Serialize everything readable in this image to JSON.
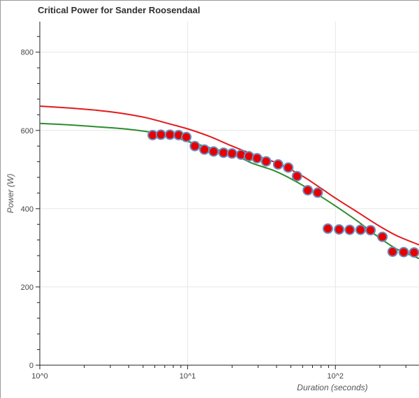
{
  "frame": {
    "background": "#ffffff",
    "border_color": "#9a9a9a"
  },
  "chart_data": {
    "type": "scatter",
    "title": "Critical Power for Sander Roosendaal",
    "xlabel": "Duration (seconds)",
    "ylabel": "Power (W)",
    "x_scale": "log",
    "x_range": [
      1,
      372
    ],
    "y_range": [
      0,
      878
    ],
    "grid": "on",
    "legend": "none",
    "colors": {
      "title": "#303030",
      "grid": "#e6e6e6",
      "axis": "#222222",
      "tick_label": "#444444",
      "axis_title": "#555555",
      "marker_fill": "#e60000",
      "marker_stroke": "#6b8ebf",
      "curve_red": "#e31a1c",
      "curve_green": "#2e8b2e"
    },
    "x_ticks": {
      "major": [
        {
          "value": 1,
          "label": "10^0"
        },
        {
          "value": 10,
          "label": "10^1"
        },
        {
          "value": 100,
          "label": "10^2"
        }
      ],
      "minor": [
        2,
        3,
        4,
        5,
        6,
        7,
        8,
        9,
        20,
        30,
        40,
        50,
        60,
        70,
        80,
        90,
        200,
        300
      ]
    },
    "y_ticks": {
      "major": [
        {
          "value": 0,
          "label": "0"
        },
        {
          "value": 200,
          "label": "200"
        },
        {
          "value": 400,
          "label": "400"
        },
        {
          "value": 600,
          "label": "600"
        },
        {
          "value": 800,
          "label": "800"
        }
      ],
      "minor": [
        40,
        80,
        120,
        160,
        240,
        280,
        320,
        360,
        440,
        480,
        520,
        560,
        640,
        680,
        720,
        760,
        840
      ]
    },
    "series": [
      {
        "name": "cp-model-curve-red",
        "type": "line",
        "color": "#e31a1c",
        "width": 2,
        "points": [
          [
            1,
            662
          ],
          [
            1.6,
            657
          ],
          [
            2.5,
            651
          ],
          [
            3.7,
            643
          ],
          [
            5.3,
            632
          ],
          [
            7.5,
            617
          ],
          [
            10,
            604
          ],
          [
            14,
            585
          ],
          [
            20,
            560
          ],
          [
            29,
            536
          ],
          [
            42,
            514
          ],
          [
            60,
            483
          ],
          [
            80,
            452
          ],
          [
            100,
            427
          ],
          [
            140,
            392
          ],
          [
            190,
            360
          ],
          [
            260,
            331
          ],
          [
            372,
            307
          ]
        ]
      },
      {
        "name": "cp-model-curve-green",
        "type": "line",
        "color": "#2e8b2e",
        "width": 2,
        "points": [
          [
            1,
            618
          ],
          [
            1.6,
            614
          ],
          [
            2.5,
            609
          ],
          [
            3.7,
            604
          ],
          [
            5.3,
            597
          ],
          [
            7.5,
            586
          ],
          [
            10,
            572
          ],
          [
            14,
            556
          ],
          [
            20,
            540
          ],
          [
            27,
            517
          ],
          [
            38,
            498
          ],
          [
            48,
            480
          ],
          [
            65,
            452
          ],
          [
            100,
            407
          ],
          [
            140,
            369
          ],
          [
            190,
            331
          ],
          [
            260,
            297
          ],
          [
            372,
            272
          ]
        ]
      },
      {
        "name": "observed-power-points",
        "type": "scatter",
        "marker": {
          "shape": "circle",
          "radius": 6.5,
          "fill": "#e60000",
          "stroke": "#6b8ebf",
          "stroke_width": 2
        },
        "points": [
          [
            5.8,
            588
          ],
          [
            6.6,
            589
          ],
          [
            7.6,
            589
          ],
          [
            8.7,
            588
          ],
          [
            9.8,
            583
          ],
          [
            11.2,
            560
          ],
          [
            13,
            551
          ],
          [
            15,
            546
          ],
          [
            17.5,
            543
          ],
          [
            20,
            541
          ],
          [
            23,
            538
          ],
          [
            26,
            534
          ],
          [
            29.5,
            529
          ],
          [
            34,
            521
          ],
          [
            41,
            513
          ],
          [
            48,
            505
          ],
          [
            55,
            483
          ],
          [
            65,
            447
          ],
          [
            76,
            441
          ],
          [
            89,
            349
          ],
          [
            106,
            347
          ],
          [
            125,
            346
          ],
          [
            148,
            346
          ],
          [
            173,
            345
          ],
          [
            208,
            328
          ],
          [
            244,
            290
          ],
          [
            290,
            289
          ],
          [
            341,
            288
          ]
        ]
      }
    ]
  }
}
